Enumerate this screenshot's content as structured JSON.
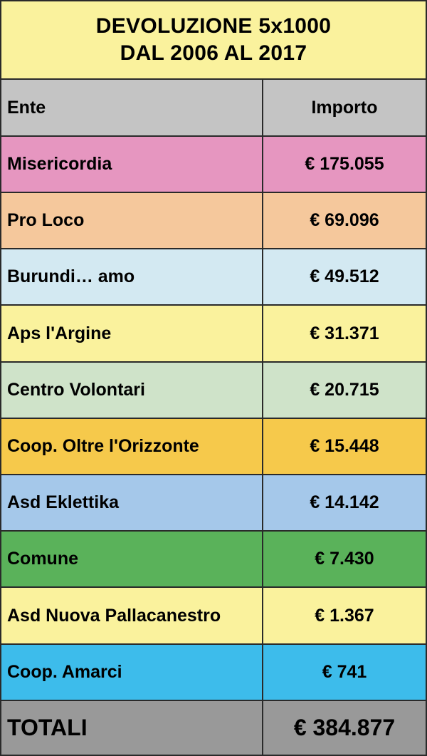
{
  "title": {
    "line1": "DEVOLUZIONE 5x1000",
    "line2": "DAL 2006 AL 2017"
  },
  "header": {
    "ente": "Ente",
    "importo": "Importo",
    "color": "#c4c4c4"
  },
  "rows": [
    {
      "ente": "Misericordia",
      "importo": "€ 175.055",
      "color": "#e696c0"
    },
    {
      "ente": "Pro Loco",
      "importo": "€ 69.096",
      "color": "#f5c89c"
    },
    {
      "ente": "Burundi… amo",
      "importo": "€ 49.512",
      "color": "#d3e9f2"
    },
    {
      "ente": "Aps l'Argine",
      "importo": "€ 31.371",
      "color": "#faf29d"
    },
    {
      "ente": "Centro Volontari",
      "importo": "€ 20.715",
      "color": "#cfe3c9"
    },
    {
      "ente": "Coop. Oltre l'Orizzonte",
      "importo": "€ 15.448",
      "color": "#f6c94b"
    },
    {
      "ente": "Asd Eklettika",
      "importo": "€ 14.142",
      "color": "#a5c8ea"
    },
    {
      "ente": "Comune",
      "importo": "€ 7.430",
      "color": "#5ab25a"
    },
    {
      "ente": "Asd Nuova Pallacanestro",
      "importo": "€ 1.367",
      "color": "#faf29d"
    },
    {
      "ente": "Coop. Amarci",
      "importo": "€ 741",
      "color": "#3dbceb"
    }
  ],
  "total": {
    "label": "TOTALI",
    "importo": "€ 384.877",
    "color": "#999999"
  }
}
